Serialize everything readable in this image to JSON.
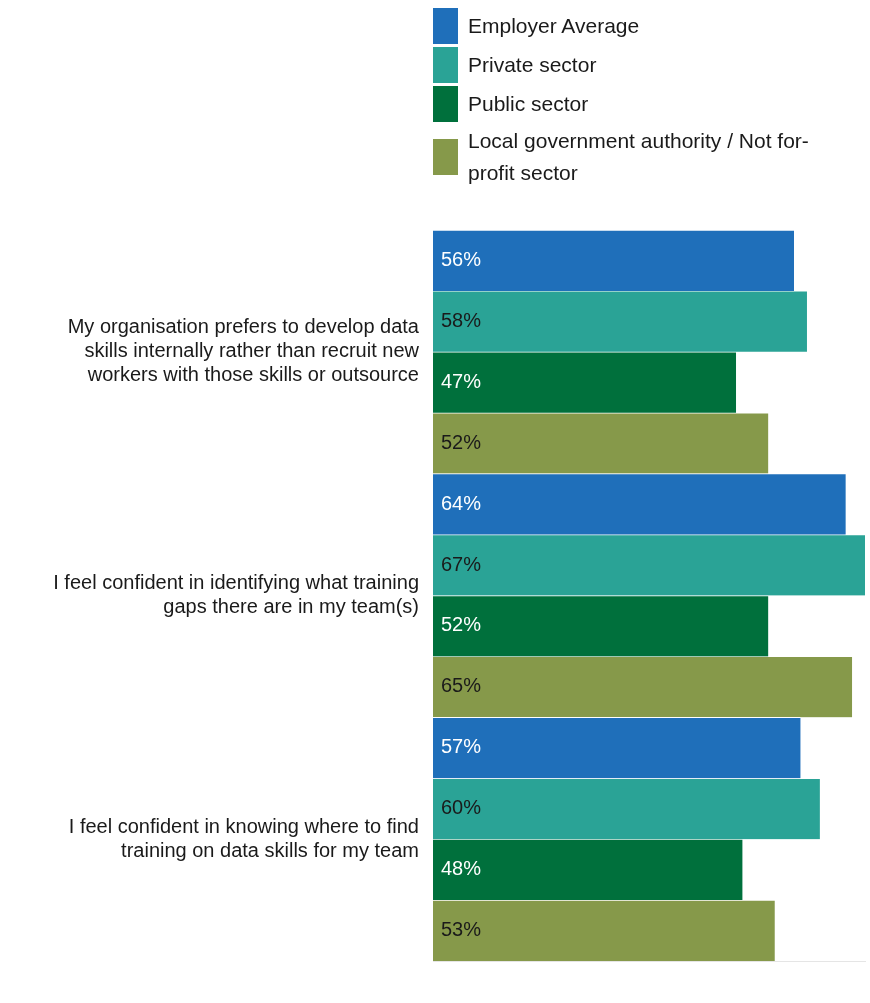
{
  "chart_data": {
    "type": "bar",
    "orientation": "horizontal",
    "legend": "top",
    "grid": false,
    "tick_labels": "y",
    "categories": [
      "My organisation prefers to develop data skills internally rather than recruit new workers with those skills or outsource",
      "I feel confident in identifying what training gaps there are in my team(s)",
      "I feel confident in knowing where to find training on data skills for my team"
    ],
    "series": [
      {
        "name": "Employer Average",
        "color": "#1f6fba",
        "values": [
          56,
          64,
          57
        ],
        "value_labels": [
          "56%",
          "64%",
          "57%"
        ]
      },
      {
        "name": "Private sector",
        "color": "#2aa396",
        "values": [
          58,
          67,
          60
        ],
        "value_labels": [
          "58%",
          "67%",
          "60%"
        ]
      },
      {
        "name": "Public sector",
        "color": "#00703c",
        "values": [
          47,
          52,
          48
        ],
        "value_labels": [
          "47%",
          "52%",
          "48%"
        ]
      },
      {
        "name": "Local government authority / Not for-profit sector",
        "color": "#86994a",
        "values": [
          52,
          65,
          53
        ],
        "value_labels": [
          "52%",
          "65%",
          "53%"
        ]
      }
    ]
  }
}
